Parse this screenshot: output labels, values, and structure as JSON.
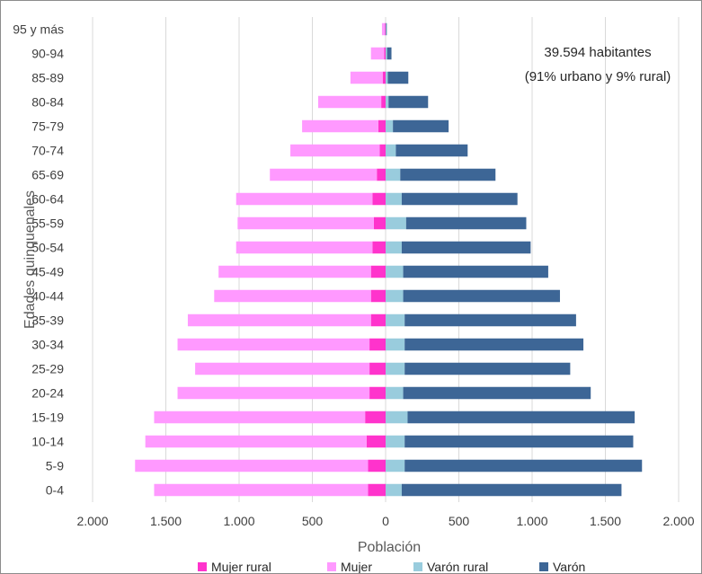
{
  "chart_data": {
    "type": "bar",
    "orientation": "horizontal-population-pyramid",
    "stacked": true,
    "xlabel": "Población",
    "ylabel": "Edades quinquenales",
    "xlim": [
      -2000,
      2000
    ],
    "xticks": [
      -2000,
      -1500,
      -1000,
      -500,
      0,
      500,
      1000,
      1500,
      2000
    ],
    "xtick_labels": [
      "2.000",
      "1.500",
      "1.000",
      "500",
      "0",
      "500",
      "1.000",
      "1.500",
      "2.000"
    ],
    "grid": "vertical",
    "legend_position": "bottom",
    "annotations": [
      "39.594 habitantes",
      "(91% urbano y 9% rural)"
    ],
    "categories": [
      "0-4",
      "5-9",
      "10-14",
      "15-19",
      "20-24",
      "25-29",
      "30-34",
      "35-39",
      "40-44",
      "45-49",
      "50-54",
      "55-59",
      "60-64",
      "65-69",
      "70-74",
      "75-79",
      "80-84",
      "85-89",
      "90-94",
      "95 y más"
    ],
    "series": [
      {
        "name": "Mujer rural",
        "side": "left",
        "color": "#ff33cc",
        "values": [
          120,
          120,
          130,
          140,
          110,
          110,
          110,
          100,
          100,
          100,
          90,
          80,
          90,
          60,
          40,
          50,
          30,
          20,
          10,
          5
        ]
      },
      {
        "name": "Mujer",
        "side": "left",
        "color": "#ff99ff",
        "values": [
          1460,
          1590,
          1510,
          1440,
          1310,
          1190,
          1310,
          1250,
          1070,
          1040,
          930,
          930,
          930,
          730,
          610,
          520,
          430,
          220,
          90,
          20
        ]
      },
      {
        "name": "Varón rural",
        "side": "right",
        "color": "#99ccdd",
        "values": [
          110,
          130,
          130,
          150,
          120,
          130,
          130,
          130,
          120,
          120,
          110,
          140,
          110,
          100,
          70,
          50,
          20,
          15,
          10,
          3
        ]
      },
      {
        "name": "Varón",
        "side": "right",
        "color": "#3d6696",
        "values": [
          1500,
          1620,
          1560,
          1550,
          1280,
          1130,
          1220,
          1170,
          1070,
          990,
          880,
          820,
          790,
          650,
          490,
          380,
          270,
          140,
          30,
          5
        ]
      }
    ]
  }
}
